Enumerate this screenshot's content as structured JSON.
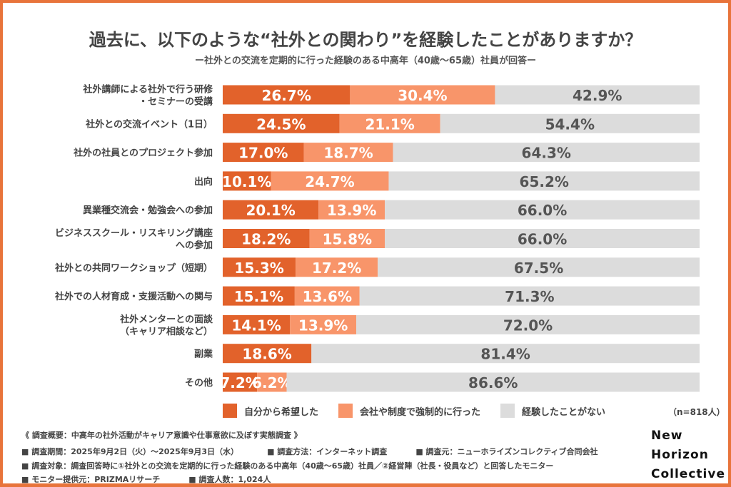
{
  "title": "過去に、以下のような“社外との関わり”を経験したことがありますか？",
  "subtitle": "ー社外との交流を定期的に行った経験のある中高年（40歳〜65歳）社員が回答ー",
  "chart_data": {
    "type": "bar",
    "orientation": "horizontal",
    "stacked": true,
    "unit": "%",
    "xlim": [
      0,
      100
    ],
    "grid": false,
    "legend_position": "bottom",
    "categories": [
      [
        "社外講師による社外で行う研修",
        "・セミナーの受講"
      ],
      [
        "社外との交流イベント（1日）"
      ],
      [
        "社外の社員とのプロジェクト参加"
      ],
      [
        "出向"
      ],
      [
        "異業種交流会・勉強会への参加"
      ],
      [
        "ビジネススクール・リスキリング講座",
        "への参加"
      ],
      [
        "社外との共同ワークショップ（短期）"
      ],
      [
        "社外での人材育成・支援活動への関与"
      ],
      [
        "社外メンターとの面談",
        "（キャリア相談など）"
      ],
      [
        "副業"
      ],
      [
        "その他"
      ]
    ],
    "series": [
      {
        "name": "自分から希望した",
        "color": "#e2622b",
        "values": [
          26.7,
          24.5,
          17.0,
          10.1,
          20.1,
          18.2,
          15.3,
          15.1,
          14.1,
          18.6,
          7.2
        ]
      },
      {
        "name": "会社や制度で強制的に行った",
        "color": "#f8956a",
        "values": [
          30.4,
          21.1,
          18.7,
          24.7,
          13.9,
          15.8,
          17.2,
          13.6,
          13.9,
          null,
          6.2
        ]
      },
      {
        "name": "経験したことがない",
        "color": "#dcdcdc",
        "values": [
          42.9,
          54.4,
          64.3,
          65.2,
          66.0,
          66.0,
          67.5,
          71.3,
          72.0,
          81.4,
          86.6
        ]
      }
    ]
  },
  "sample_size": "（n=818人）",
  "footer": {
    "heading": "《 調査概要：中高年の社外活動がキャリア意識や仕事意欲に及ぼす実態調査 》",
    "period": "■ 調査期間：2025年9月2日（火）〜2025年9月3日（水）",
    "method": "■ 調査方法：インターネット調査",
    "organizer": "■ 調査元：ニューホライズンコレクティブ合同会社",
    "target": "■ 調査対象：調査回答時に①社外との交流を定期的に行った経験のある中高年（40歳〜65歳）社員／②経営陣（社長・役員など）と回答したモニター",
    "provider": "■ モニター提供元：PRIZMAリサーチ",
    "count": "■ 調査人数：1,024人"
  },
  "logo": [
    "New",
    "Horizon",
    "Collective"
  ]
}
